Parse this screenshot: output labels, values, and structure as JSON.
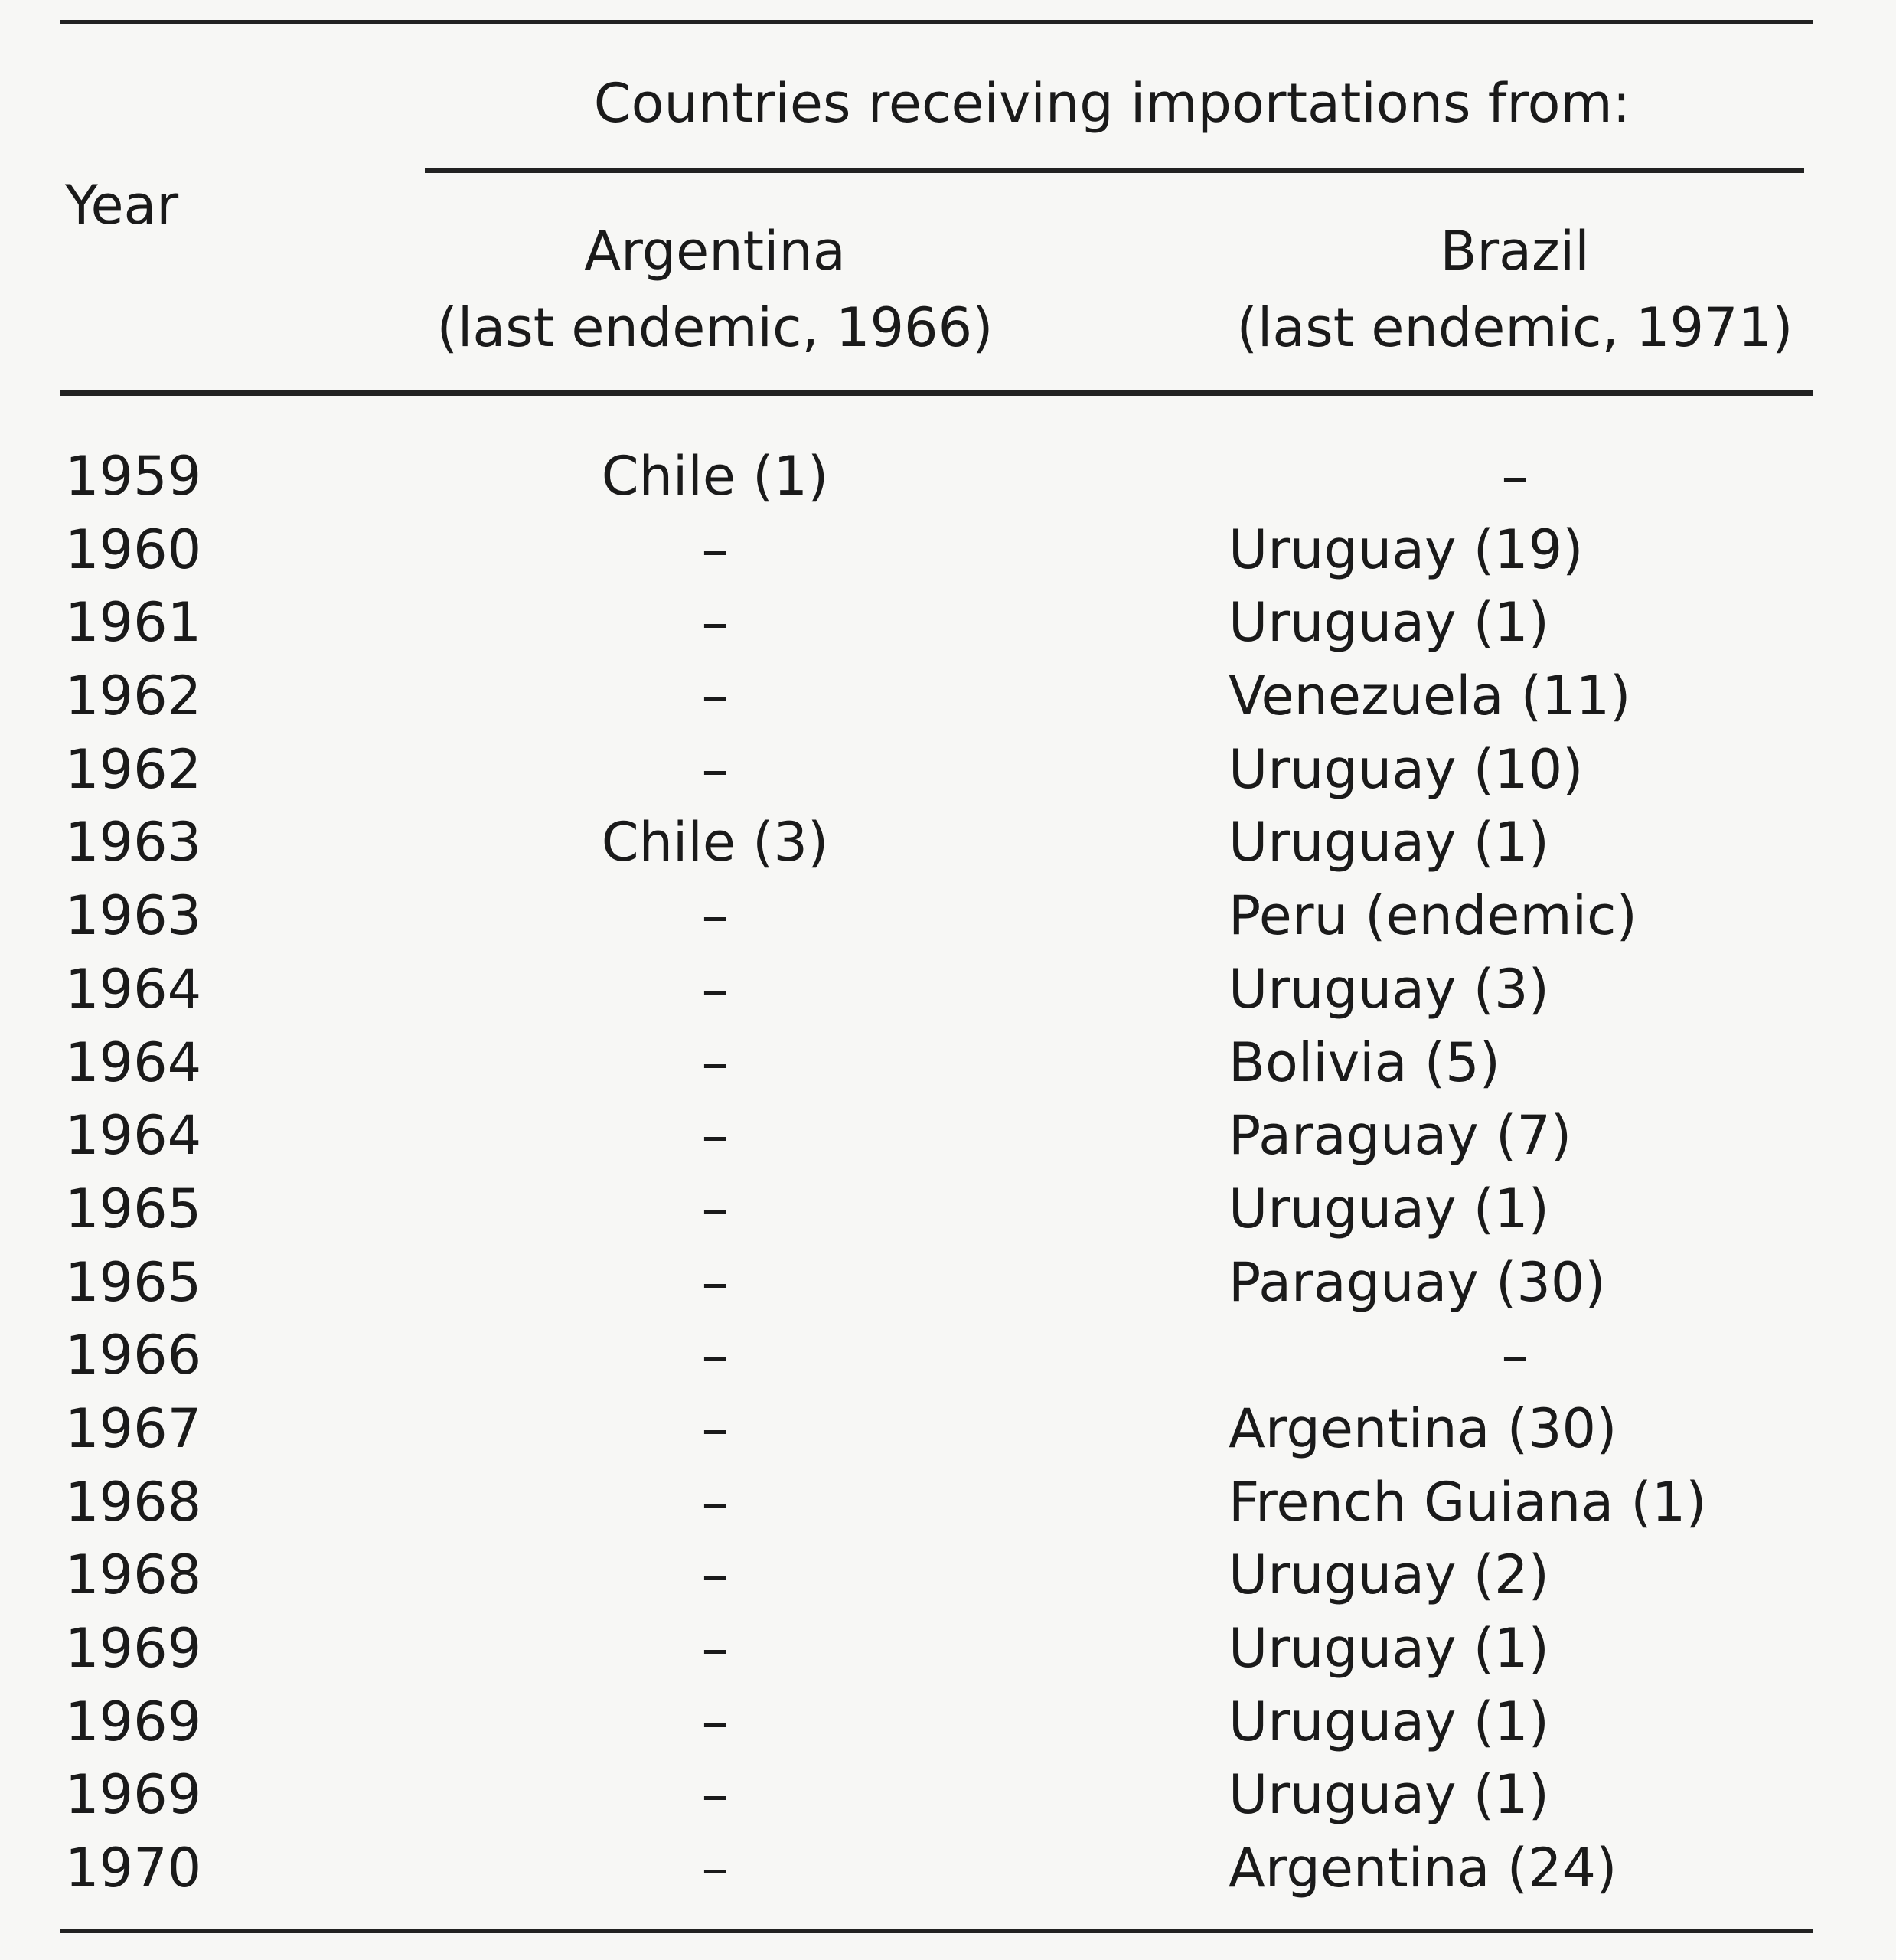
{
  "table": {
    "header": {
      "year": "Year",
      "group": "Countries receiving importations from:",
      "col_argentina": "Argentina",
      "col_argentina_sub": "(last endemic, 1966)",
      "col_brazil": "Brazil",
      "col_brazil_sub": "(last endemic, 1971)"
    },
    "rows": [
      {
        "year": "1959",
        "argentina": "Chile (1)",
        "brazil": "–"
      },
      {
        "year": "1960",
        "argentina": "–",
        "brazil": "Uruguay (19)"
      },
      {
        "year": "1961",
        "argentina": "–",
        "brazil": "Uruguay (1)"
      },
      {
        "year": "1962",
        "argentina": "–",
        "brazil": "Venezuela (11)"
      },
      {
        "year": "1962",
        "argentina": "–",
        "brazil": "Uruguay (10)"
      },
      {
        "year": "1963",
        "argentina": "Chile (3)",
        "brazil": "Uruguay (1)"
      },
      {
        "year": "1963",
        "argentina": "–",
        "brazil": "Peru (endemic)"
      },
      {
        "year": "1964",
        "argentina": "–",
        "brazil": "Uruguay (3)"
      },
      {
        "year": "1964",
        "argentina": "–",
        "brazil": "Bolivia (5)"
      },
      {
        "year": "1964",
        "argentina": "–",
        "brazil": "Paraguay (7)"
      },
      {
        "year": "1965",
        "argentina": "–",
        "brazil": "Uruguay (1)"
      },
      {
        "year": "1965",
        "argentina": "–",
        "brazil": "Paraguay (30)"
      },
      {
        "year": "1966",
        "argentina": "–",
        "brazil": "–"
      },
      {
        "year": "1967",
        "argentina": "–",
        "brazil": "Argentina (30)"
      },
      {
        "year": "1968",
        "argentina": "–",
        "brazil": "French Guiana (1)"
      },
      {
        "year": "1968",
        "argentina": "–",
        "brazil": "Uruguay (2)"
      },
      {
        "year": "1969",
        "argentina": "–",
        "brazil": "Uruguay (1)"
      },
      {
        "year": "1969",
        "argentina": "–",
        "brazil": "Uruguay (1)"
      },
      {
        "year": "1969",
        "argentina": "–",
        "brazil": "Uruguay (1)"
      },
      {
        "year": "1970",
        "argentina": "–",
        "brazil": "Argentina (24)"
      }
    ]
  }
}
